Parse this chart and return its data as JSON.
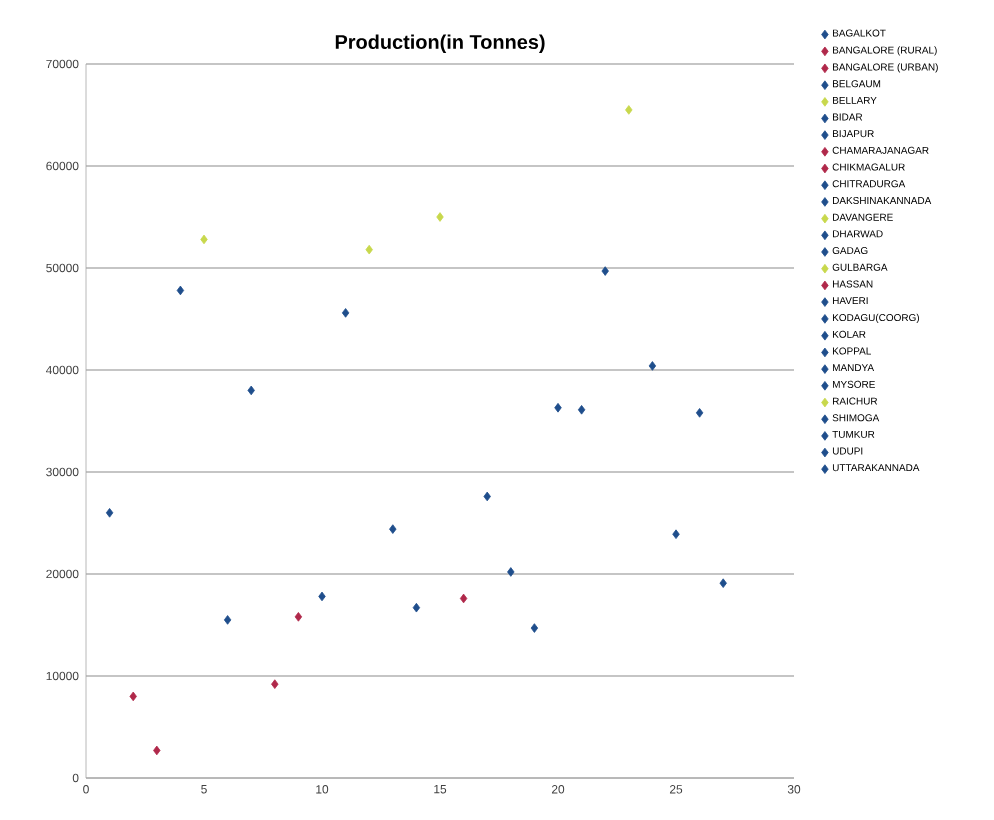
{
  "chart_data": {
    "type": "scatter",
    "title": "Production(in Tonnes)",
    "marker": "diamond",
    "grid": "y",
    "legend": "right",
    "xlim": [
      0,
      30
    ],
    "xticks": [
      0,
      5,
      10,
      15,
      20,
      25,
      30
    ],
    "ylim": [
      0,
      70000
    ],
    "yticks": [
      0,
      10000,
      20000,
      30000,
      40000,
      50000,
      60000,
      70000
    ],
    "series": [
      {
        "name": "BAGALKOT",
        "color": "#1f4e8c",
        "x": [
          1
        ],
        "values": [
          26000
        ]
      },
      {
        "name": "BANGALORE (RURAL)",
        "color": "#b0284a",
        "x": [
          2
        ],
        "values": [
          8000
        ]
      },
      {
        "name": "BANGALORE (URBAN)",
        "color": "#b0284a",
        "x": [
          3
        ],
        "values": [
          2700
        ]
      },
      {
        "name": "BELGAUM",
        "color": "#1f4e8c",
        "x": [
          4
        ],
        "values": [
          47800
        ]
      },
      {
        "name": "BELLARY",
        "color": "#c8d84c",
        "x": [
          5
        ],
        "values": [
          52800
        ]
      },
      {
        "name": "BIDAR",
        "color": "#1f4e8c",
        "x": [
          6
        ],
        "values": [
          15500
        ]
      },
      {
        "name": "BIJAPUR",
        "color": "#1f4e8c",
        "x": [
          7
        ],
        "values": [
          38000
        ]
      },
      {
        "name": "CHAMARAJANAGAR",
        "color": "#b0284a",
        "x": [
          8
        ],
        "values": [
          9200
        ]
      },
      {
        "name": "CHIKMAGALUR",
        "color": "#b0284a",
        "x": [
          9
        ],
        "values": [
          15800
        ]
      },
      {
        "name": "CHITRADURGA",
        "color": "#1f4e8c",
        "x": [
          10
        ],
        "values": [
          17800
        ]
      },
      {
        "name": "DAKSHINAKANNADA",
        "color": "#1f4e8c",
        "x": [
          11
        ],
        "values": [
          45600
        ]
      },
      {
        "name": "DAVANGERE",
        "color": "#c8d84c",
        "x": [
          12
        ],
        "values": [
          51800
        ]
      },
      {
        "name": "DHARWAD",
        "color": "#1f4e8c",
        "x": [
          13
        ],
        "values": [
          24400
        ]
      },
      {
        "name": "GADAG",
        "color": "#1f4e8c",
        "x": [
          14
        ],
        "values": [
          16700
        ]
      },
      {
        "name": "GULBARGA",
        "color": "#c8d84c",
        "x": [
          15
        ],
        "values": [
          55000
        ]
      },
      {
        "name": "HASSAN",
        "color": "#b0284a",
        "x": [
          16
        ],
        "values": [
          17600
        ]
      },
      {
        "name": "HAVERI",
        "color": "#1f4e8c",
        "x": [
          17
        ],
        "values": [
          27600
        ]
      },
      {
        "name": "KODAGU(COORG)",
        "color": "#1f4e8c",
        "x": [
          18
        ],
        "values": [
          20200
        ]
      },
      {
        "name": "KOLAR",
        "color": "#1f4e8c",
        "x": [
          19
        ],
        "values": [
          14700
        ]
      },
      {
        "name": "KOPPAL",
        "color": "#1f4e8c",
        "x": [
          20
        ],
        "values": [
          36300
        ]
      },
      {
        "name": "MANDYA",
        "color": "#1f4e8c",
        "x": [
          21
        ],
        "values": [
          36100
        ]
      },
      {
        "name": "MYSORE",
        "color": "#1f4e8c",
        "x": [
          22
        ],
        "values": [
          49700
        ]
      },
      {
        "name": "RAICHUR",
        "color": "#c8d84c",
        "x": [
          23
        ],
        "values": [
          65500
        ]
      },
      {
        "name": "SHIMOGA",
        "color": "#1f4e8c",
        "x": [
          24
        ],
        "values": [
          40400
        ]
      },
      {
        "name": "TUMKUR",
        "color": "#1f4e8c",
        "x": [
          25
        ],
        "values": [
          23900
        ]
      },
      {
        "name": "UDUPI",
        "color": "#1f4e8c",
        "x": [
          26
        ],
        "values": [
          35800
        ]
      },
      {
        "name": "UTTARAKANNADA",
        "color": "#1f4e8c",
        "x": [
          27
        ],
        "values": [
          19100
        ]
      }
    ]
  }
}
